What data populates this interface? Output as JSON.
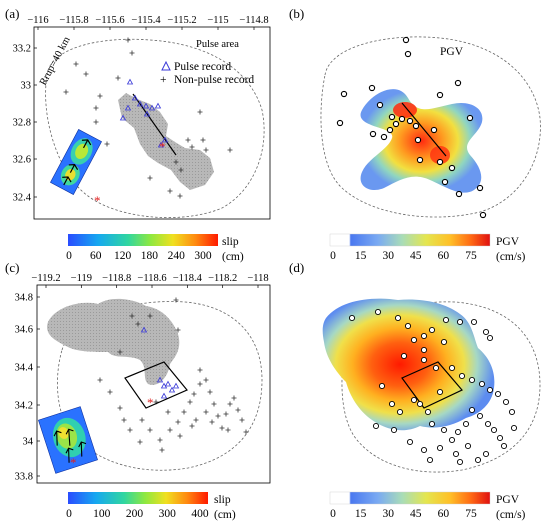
{
  "panels": {
    "a": {
      "label": "(a)",
      "lon_ticks": [
        "−116",
        "−115.8",
        "−115.6",
        "−115.4",
        "−115.2",
        "−115",
        "−114.8"
      ],
      "lat_ticks": [
        "33.2",
        "33",
        "32.8",
        "32.6",
        "32.4"
      ],
      "rrup_label": "Rrup=40 km",
      "area_label": "Pulse area",
      "legend": [
        "Pulse record",
        "Non-pulse record"
      ],
      "colorbar": {
        "ticks": [
          "0",
          "60",
          "120",
          "180",
          "240",
          "300"
        ],
        "label": "slip",
        "unit": "(cm)"
      }
    },
    "b": {
      "label": "(b)",
      "title": "PGV",
      "colorbar": {
        "ticks": [
          "0",
          "15",
          "30",
          "45",
          "60",
          "75"
        ],
        "label": "PGV",
        "unit": "(cm/s)"
      }
    },
    "c": {
      "label": "(c)",
      "lon_ticks": [
        "−119.2",
        "−119",
        "−118.8",
        "−118.6",
        "−118.4",
        "−118.2",
        "−118"
      ],
      "lat_ticks": [
        "34.8",
        "34.6",
        "34.4",
        "34.2",
        "34",
        "33.8"
      ],
      "colorbar": {
        "ticks": [
          "0",
          "100",
          "200",
          "300",
          "400"
        ],
        "label": "slip",
        "unit": "(cm)"
      }
    },
    "d": {
      "label": "(d)",
      "colorbar": {
        "ticks": [
          "0",
          "15",
          "30",
          "45",
          "60",
          "75"
        ],
        "label": "PGV",
        "unit": "(cm/s)"
      }
    }
  },
  "colors": {
    "pulse_marker": "#3a3ad8",
    "epicenter": "#e02020",
    "footprint": "#b4b4b4",
    "jet": [
      "#1e3cff",
      "#16a0f0",
      "#2ed0c0",
      "#66e060",
      "#c8e820",
      "#ffd000",
      "#ff8000",
      "#ff2a00"
    ],
    "pgv": [
      "#ffffff",
      "#4a78f0",
      "#7aa6f4",
      "#9fd7c0",
      "#dce45a",
      "#ffce2e",
      "#ff8c1a",
      "#ff3a10",
      "#e01010"
    ]
  }
}
